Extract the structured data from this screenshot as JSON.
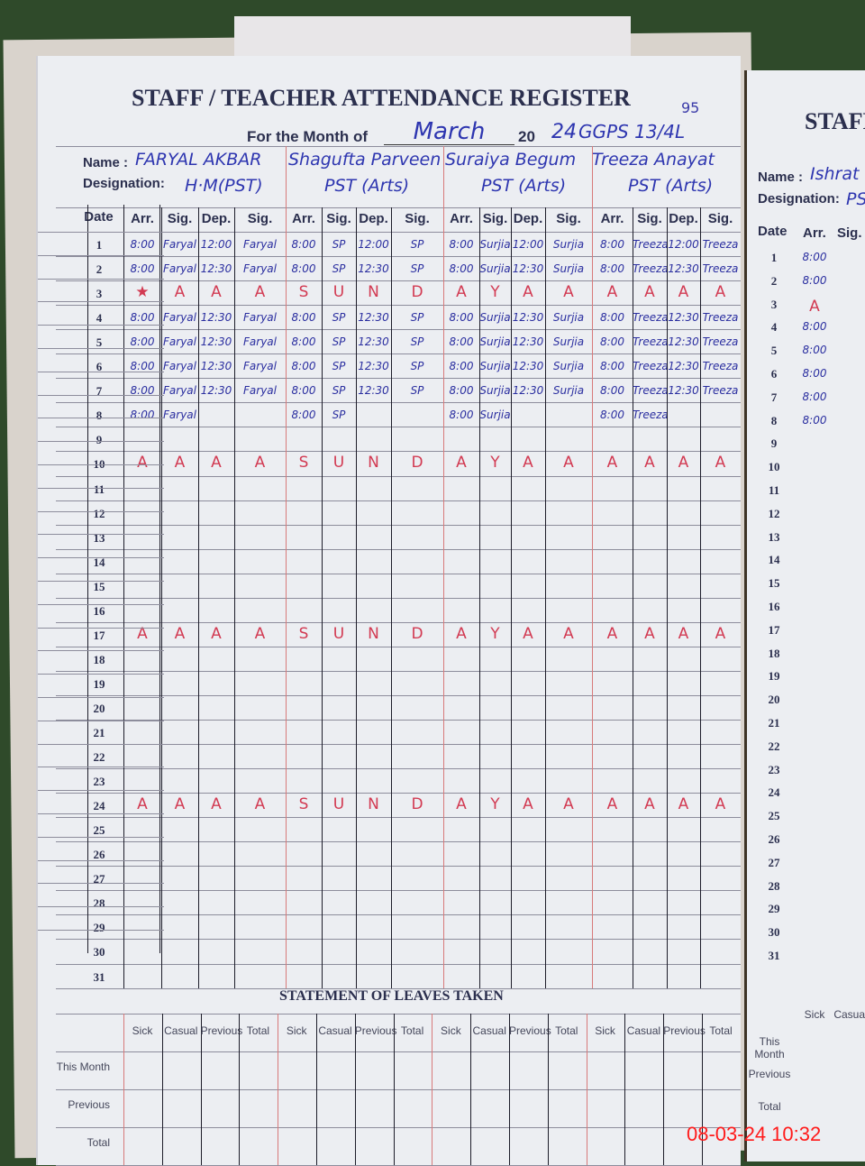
{
  "register": {
    "title": "STAFF / TEACHER ATTENDANCE REGISTER",
    "page_note": "95",
    "month_label": "For the Month of",
    "month": "March",
    "year_prefix": "20",
    "year_suffix": "24",
    "school": "GGPS 13/4L",
    "name_label": "Name :",
    "designation_label": "Designation:",
    "date_header": "Date",
    "sub_headers": [
      "Arr.",
      "Sig.",
      "Dep.",
      "Sig."
    ],
    "teachers": [
      {
        "name": "FARYAL AKBAR",
        "designation": "H·M(PST)"
      },
      {
        "name": "Shagufta Parveen",
        "designation": "PST (Arts)"
      },
      {
        "name": "Suraiya Begum",
        "designation": "PST (Arts)"
      },
      {
        "name": "Treeza Anayat",
        "designation": "PST (Arts)"
      }
    ],
    "rows": [
      {
        "date": "1",
        "cells": [
          "8:00",
          "Faryal",
          "12:00",
          "Faryal",
          "8:00",
          "SP",
          "12:00",
          "SP",
          "8:00",
          "Surjia",
          "12:00",
          "Surjia",
          "8:00",
          "Treeza",
          "12:00",
          "Treeza"
        ]
      },
      {
        "date": "2",
        "cells": [
          "8:00",
          "Faryal",
          "12:30",
          "Faryal",
          "8:00",
          "SP",
          "12:30",
          "SP",
          "8:00",
          "Surjia",
          "12:30",
          "Surjia",
          "8:00",
          "Treeza",
          "12:30",
          "Treeza"
        ]
      },
      {
        "date": "3",
        "sunday": true,
        "cells": [
          "★",
          "A",
          "A",
          "A",
          "S",
          "U",
          "N",
          "D",
          "A",
          "Y",
          "A",
          "A",
          "A",
          "A",
          "A",
          "A"
        ]
      },
      {
        "date": "4",
        "cells": [
          "8:00",
          "Faryal",
          "12:30",
          "Faryal",
          "8:00",
          "SP",
          "12:30",
          "SP",
          "8:00",
          "Surjia",
          "12:30",
          "Surjia",
          "8:00",
          "Treeza",
          "12:30",
          "Treeza"
        ]
      },
      {
        "date": "5",
        "cells": [
          "8:00",
          "Faryal",
          "12:30",
          "Faryal",
          "8:00",
          "SP",
          "12:30",
          "SP",
          "8:00",
          "Surjia",
          "12:30",
          "Surjia",
          "8:00",
          "Treeza",
          "12:30",
          "Treeza"
        ]
      },
      {
        "date": "6",
        "cells": [
          "8:00",
          "Faryal",
          "12:30",
          "Faryal",
          "8:00",
          "SP",
          "12:30",
          "SP",
          "8:00",
          "Surjia",
          "12:30",
          "Surjia",
          "8:00",
          "Treeza",
          "12:30",
          "Treeza"
        ]
      },
      {
        "date": "7",
        "cells": [
          "8:00",
          "Faryal",
          "12:30",
          "Faryal",
          "8:00",
          "SP",
          "12:30",
          "SP",
          "8:00",
          "Surjia",
          "12:30",
          "Surjia",
          "8:00",
          "Treeza",
          "12:30",
          "Treeza"
        ]
      },
      {
        "date": "8",
        "cells": [
          "8:00",
          "Faryal",
          "",
          "",
          "8:00",
          "SP",
          "",
          "",
          "8:00",
          "Surjia",
          "",
          "",
          "8:00",
          "Treeza",
          "",
          ""
        ]
      },
      {
        "date": "9",
        "cells": []
      },
      {
        "date": "10",
        "sunday": true,
        "cells": [
          "A",
          "A",
          "A",
          "A",
          "S",
          "U",
          "N",
          "D",
          "A",
          "Y",
          "A",
          "A",
          "A",
          "A",
          "A",
          "A"
        ]
      },
      {
        "date": "11",
        "cells": []
      },
      {
        "date": "12",
        "cells": []
      },
      {
        "date": "13",
        "cells": []
      },
      {
        "date": "14",
        "cells": []
      },
      {
        "date": "15",
        "cells": []
      },
      {
        "date": "16",
        "cells": []
      },
      {
        "date": "17",
        "sunday": true,
        "cells": [
          "A",
          "A",
          "A",
          "A",
          "S",
          "U",
          "N",
          "D",
          "A",
          "Y",
          "A",
          "A",
          "A",
          "A",
          "A",
          "A"
        ]
      },
      {
        "date": "18",
        "cells": []
      },
      {
        "date": "19",
        "cells": []
      },
      {
        "date": "20",
        "cells": []
      },
      {
        "date": "21",
        "cells": []
      },
      {
        "date": "22",
        "cells": []
      },
      {
        "date": "23",
        "cells": []
      },
      {
        "date": "24",
        "sunday": true,
        "cells": [
          "A",
          "A",
          "A",
          "A",
          "S",
          "U",
          "N",
          "D",
          "A",
          "Y",
          "A",
          "A",
          "A",
          "A",
          "A",
          "A"
        ]
      },
      {
        "date": "25",
        "cells": []
      },
      {
        "date": "26",
        "cells": []
      },
      {
        "date": "27",
        "cells": []
      },
      {
        "date": "28",
        "cells": []
      },
      {
        "date": "29",
        "cells": []
      },
      {
        "date": "30",
        "cells": []
      },
      {
        "date": "31",
        "cells": []
      }
    ],
    "leaves": {
      "title": "STATEMENT OF LEAVES TAKEN",
      "headers": [
        "Sick",
        "Casual",
        "Previous",
        "Total"
      ],
      "row_labels": [
        "This Month",
        "Previous",
        "Total"
      ]
    }
  },
  "right_page": {
    "title": "STAFF",
    "name": "Ishrat",
    "designation": "PS",
    "headers": [
      "Date",
      "Arr.",
      "Sig."
    ],
    "arrivals": [
      "8:00",
      "8:00",
      "A",
      "8:00",
      "8:00",
      "8:00",
      "8:00",
      "8:00"
    ],
    "leaves_headers": [
      "Sick",
      "Casual"
    ],
    "leaves_rows": [
      "This Month",
      "Previous",
      "Total"
    ]
  },
  "timestamp": "08-03-24  10:32"
}
